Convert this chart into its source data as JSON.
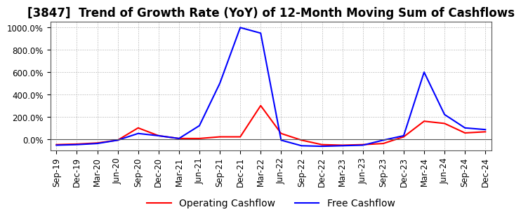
{
  "title": "[3847]  Trend of Growth Rate (YoY) of 12-Month Moving Sum of Cashflows",
  "ylim": [
    -100,
    1050
  ],
  "yticks": [
    0,
    200,
    400,
    600,
    800,
    1000
  ],
  "ytick_labels": [
    "0.0%",
    "200.0%",
    "400.0%",
    "600.0%",
    "800.0%",
    "1000.0%"
  ],
  "background_color": "#ffffff",
  "grid_color": "#aaaaaa",
  "x_labels": [
    "Sep-19",
    "Dec-19",
    "Mar-20",
    "Jun-20",
    "Sep-20",
    "Dec-20",
    "Mar-21",
    "Jun-21",
    "Sep-21",
    "Dec-21",
    "Mar-22",
    "Jun-22",
    "Sep-22",
    "Dec-22",
    "Mar-23",
    "Jun-23",
    "Sep-23",
    "Dec-23",
    "Mar-24",
    "Jun-24",
    "Sep-24",
    "Dec-24"
  ],
  "operating_cashflow": [
    -50,
    -45,
    -35,
    -10,
    100,
    30,
    5,
    5,
    20,
    20,
    300,
    50,
    -10,
    -50,
    -55,
    -50,
    -40,
    20,
    160,
    140,
    55,
    65
  ],
  "free_cashflow": [
    -55,
    -50,
    -40,
    -10,
    50,
    30,
    5,
    120,
    500,
    1000,
    950,
    -10,
    -60,
    -65,
    -60,
    -55,
    -10,
    30,
    600,
    220,
    100,
    85
  ],
  "op_color": "#ff0000",
  "free_color": "#0000ff",
  "line_width": 1.5,
  "title_fontsize": 12,
  "tick_fontsize": 8.5,
  "legend_fontsize": 10
}
